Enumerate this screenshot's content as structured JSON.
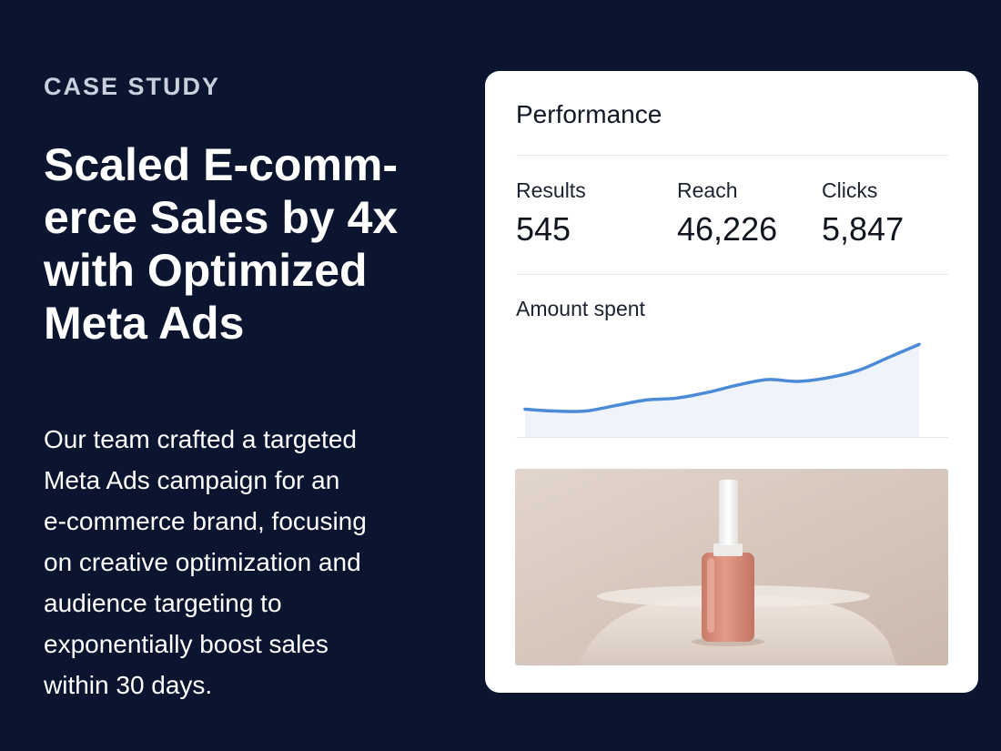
{
  "hero": {
    "eyebrow": "CASE STUDY",
    "headline_lines": [
      "Scaled E-comm-",
      "erce Sales by 4x",
      "with Optimized",
      "Meta Ads"
    ],
    "body_lines": [
      "Our team crafted a targeted",
      "Meta Ads campaign for an",
      "e-commerce brand, focusing",
      "on creative optimization and",
      "audience targeting to",
      "exponentially boost sales",
      "within 30 days."
    ]
  },
  "card": {
    "title": "Performance",
    "metrics": [
      {
        "label": "Results",
        "value": "545"
      },
      {
        "label": "Reach",
        "value": "46,226"
      },
      {
        "label": "Clicks",
        "value": "5,847"
      }
    ],
    "chart_label": "Amount spent",
    "image": {
      "subject": "nail-polish-bottle-icon"
    }
  },
  "colors": {
    "background": "#0b1530",
    "card": "#ffffff",
    "line": "#4a8ad6",
    "area": "#eef3fc",
    "image_bg": "#ddcfc6",
    "polish": "#d98a78"
  },
  "chart_data": {
    "type": "area",
    "title": "Amount spent",
    "xlabel": "",
    "ylabel": "",
    "x": [
      0,
      1,
      2,
      3,
      4,
      5,
      6,
      7,
      8,
      9,
      10,
      11,
      12,
      13
    ],
    "series": [
      {
        "values": [
          15,
          14,
          14,
          17,
          20,
          21,
          24,
          28,
          31,
          30,
          32,
          36,
          43,
          50
        ]
      }
    ],
    "xlim": [
      0,
      13
    ],
    "ylim": [
      0,
      60
    ],
    "grid": false,
    "legend": "none"
  }
}
